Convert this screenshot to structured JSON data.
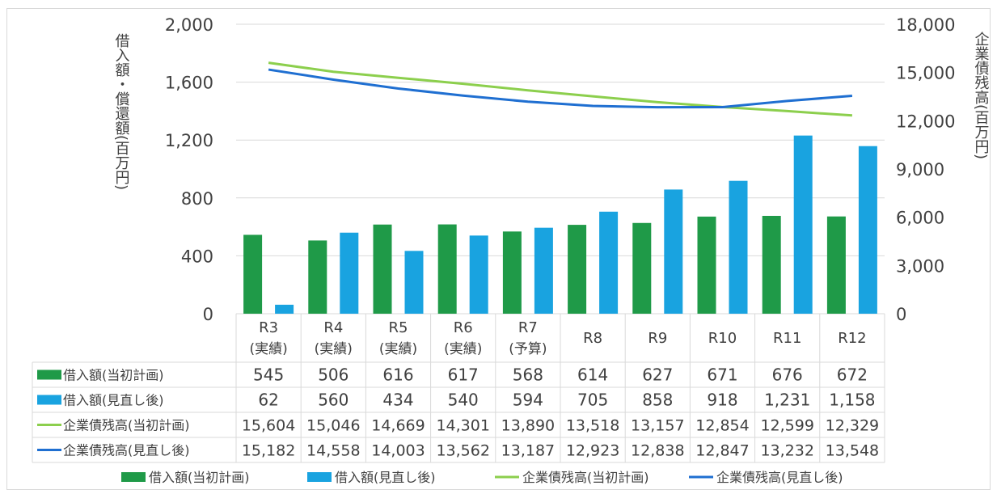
{
  "chart_data": {
    "type": "bar",
    "categories": [
      {
        "top": "R3",
        "bottom": "(実績)"
      },
      {
        "top": "R4",
        "bottom": "(実績)"
      },
      {
        "top": "R5",
        "bottom": "(実績)"
      },
      {
        "top": "R6",
        "bottom": "(実績)"
      },
      {
        "top": "R7",
        "bottom": "(予算)"
      },
      {
        "top": "R8",
        "bottom": ""
      },
      {
        "top": "R9",
        "bottom": ""
      },
      {
        "top": "R10",
        "bottom": ""
      },
      {
        "top": "R11",
        "bottom": ""
      },
      {
        "top": "R12",
        "bottom": ""
      }
    ],
    "left_axis": {
      "label": "借入額・償還額(百万円)",
      "range": [
        0,
        2000
      ],
      "ticks": [
        0,
        400,
        800,
        1200,
        1600,
        2000
      ],
      "tick_labels": [
        "0",
        "400",
        "800",
        "1,200",
        "1,600",
        "2,000"
      ]
    },
    "right_axis": {
      "label": "企業債残高(百万円)",
      "range": [
        0,
        18000
      ],
      "ticks": [
        0,
        3000,
        6000,
        9000,
        12000,
        15000,
        18000
      ],
      "tick_labels": [
        "0",
        "3,000",
        "6,000",
        "9,000",
        "12,000",
        "15,000",
        "18,000"
      ]
    },
    "grid": true,
    "legend_position": "bottom",
    "series": [
      {
        "name": "借入額(当初計画)",
        "kind": "bar",
        "axis": "left",
        "color": "#1f9a48",
        "values": [
          545,
          506,
          616,
          617,
          568,
          614,
          627,
          671,
          676,
          672
        ],
        "labels": [
          "545",
          "506",
          "616",
          "617",
          "568",
          "614",
          "627",
          "671",
          "676",
          "672"
        ]
      },
      {
        "name": "借入額(見直し後)",
        "kind": "bar",
        "axis": "left",
        "color": "#19a3e0",
        "values": [
          62,
          560,
          434,
          540,
          594,
          705,
          858,
          918,
          1231,
          1158
        ],
        "labels": [
          "62",
          "560",
          "434",
          "540",
          "594",
          "705",
          "858",
          "918",
          "1,231",
          "1,158"
        ]
      },
      {
        "name": "企業債残高(当初計画)",
        "kind": "line",
        "axis": "right",
        "color": "#8ccf4d",
        "values": [
          15604,
          15046,
          14669,
          14301,
          13890,
          13518,
          13157,
          12854,
          12599,
          12329
        ],
        "labels": [
          "15,604",
          "15,046",
          "14,669",
          "14,301",
          "13,890",
          "13,518",
          "13,157",
          "12,854",
          "12,599",
          "12,329"
        ]
      },
      {
        "name": "企業債残高(見直し後)",
        "kind": "line",
        "axis": "right",
        "color": "#1f6fd1",
        "values": [
          15182,
          14558,
          14003,
          13562,
          13187,
          12923,
          12838,
          12847,
          13232,
          13548
        ],
        "labels": [
          "15,182",
          "14,558",
          "14,003",
          "13,562",
          "13,187",
          "12,923",
          "12,838",
          "12,847",
          "13,232",
          "13,548"
        ]
      }
    ]
  }
}
